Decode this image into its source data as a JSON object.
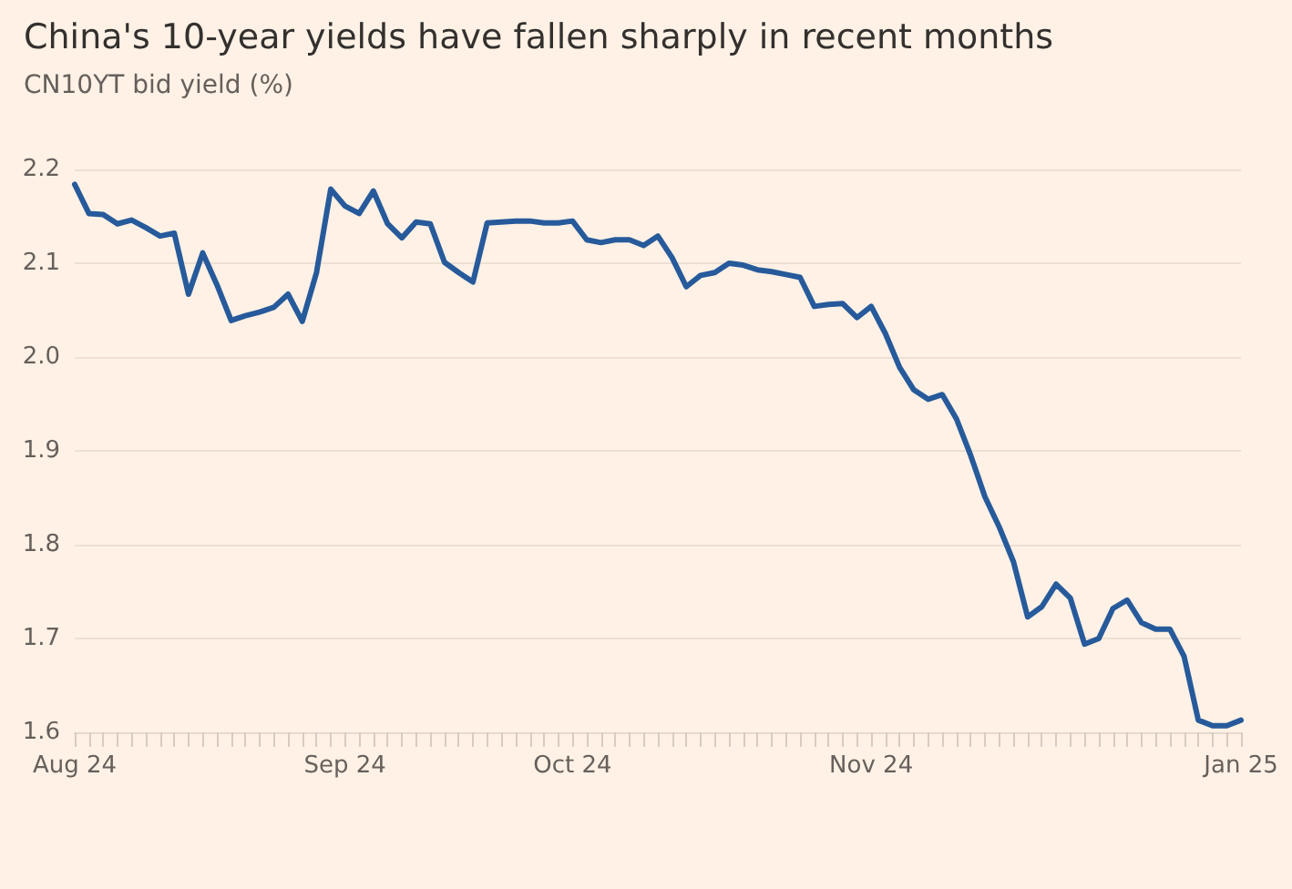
{
  "chart_data": {
    "type": "line",
    "title": "China's 10-year yields have fallen sharply in recent months",
    "subtitle": "CN10YT bid yield (%)",
    "categories": [
      "Aug 24",
      null,
      null,
      null,
      null,
      null,
      null,
      null,
      null,
      null,
      null,
      null,
      null,
      null,
      null,
      null,
      null,
      null,
      null,
      "Sep 24",
      null,
      null,
      null,
      null,
      null,
      null,
      null,
      null,
      null,
      null,
      null,
      null,
      null,
      null,
      null,
      "Oct 24",
      null,
      null,
      null,
      null,
      null,
      null,
      null,
      null,
      null,
      null,
      null,
      null,
      null,
      null,
      null,
      null,
      null,
      null,
      null,
      null,
      "Nov 24",
      null,
      null,
      null,
      null,
      null,
      null,
      null,
      null,
      null,
      null,
      null,
      null,
      null,
      null,
      null,
      null,
      null,
      null,
      null,
      null,
      null,
      null,
      null,
      null,
      null,
      "Jan 25"
    ],
    "series": [
      {
        "color": "#265a9b",
        "values": [
          2.184,
          2.153,
          2.152,
          2.142,
          2.146,
          2.138,
          2.129,
          2.132,
          2.067,
          2.111,
          2.077,
          2.039,
          2.044,
          2.048,
          2.053,
          2.067,
          2.038,
          2.09,
          2.179,
          2.161,
          2.153,
          2.177,
          2.142,
          2.127,
          2.144,
          2.142,
          2.101,
          2.09,
          2.08,
          2.143,
          2.144,
          2.145,
          2.145,
          2.143,
          2.143,
          2.145,
          2.125,
          2.122,
          2.125,
          2.125,
          2.119,
          2.129,
          2.106,
          2.075,
          2.087,
          2.09,
          2.1,
          2.098,
          2.093,
          2.091,
          2.088,
          2.085,
          2.054,
          2.056,
          2.057,
          2.042,
          2.054,
          2.025,
          1.989,
          1.965,
          1.955,
          1.96,
          1.934,
          1.895,
          1.851,
          1.819,
          1.782,
          1.723,
          1.734,
          1.758,
          1.743,
          1.694,
          1.7,
          1.732,
          1.741,
          1.717,
          1.71,
          1.71,
          1.681,
          1.613,
          1.607,
          1.607,
          1.613
        ]
      }
    ],
    "ylim": [
      1.6,
      2.2
    ],
    "yticks": [
      {
        "value": 1.6,
        "label": "1.6"
      },
      {
        "value": 1.7,
        "label": "1.7"
      },
      {
        "value": 1.8,
        "label": "1.8"
      },
      {
        "value": 1.9,
        "label": "1.9"
      },
      {
        "value": 2.0,
        "label": "2.0"
      },
      {
        "value": 2.1,
        "label": "2.1"
      },
      {
        "value": 2.2,
        "label": "2.2"
      }
    ],
    "grid": "y",
    "marker": "none",
    "line_style": "solid"
  }
}
